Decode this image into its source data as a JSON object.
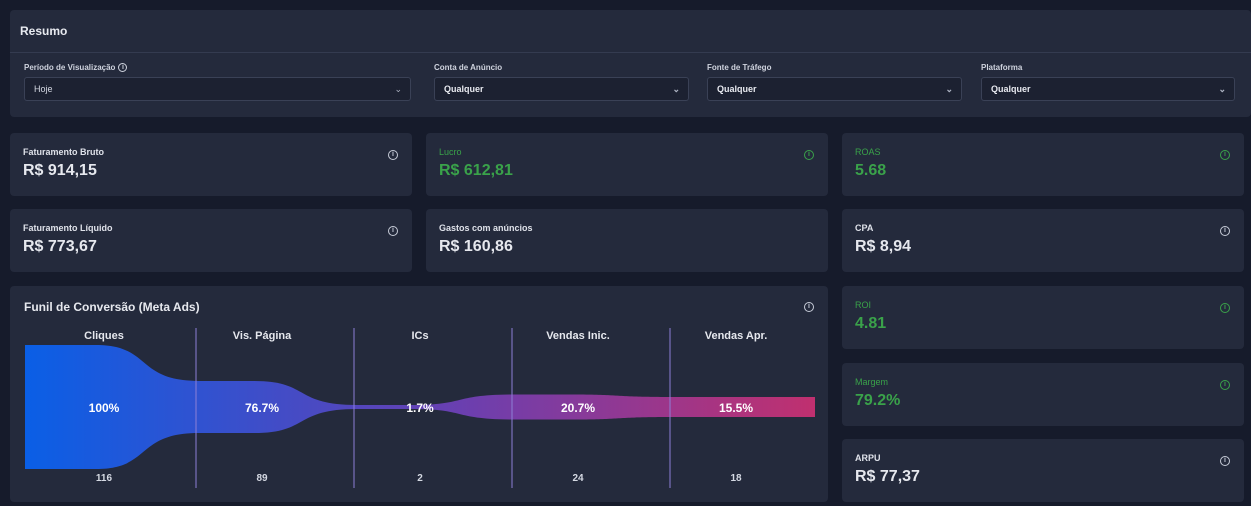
{
  "resumo": {
    "title": "Resumo",
    "filters": [
      {
        "label": "Período de Visualização",
        "value": "Hoje",
        "info": true
      },
      {
        "label": "Conta de Anúncio",
        "value": "Qualquer",
        "info": false
      },
      {
        "label": "Fonte de Tráfego",
        "value": "Qualquer",
        "info": false
      },
      {
        "label": "Plataforma",
        "value": "Qualquer",
        "info": false
      }
    ]
  },
  "kpis": {
    "faturamento_bruto": {
      "label": "Faturamento Bruto",
      "value": "R$ 914,15"
    },
    "lucro": {
      "label": "Lucro",
      "value": "R$ 612,81"
    },
    "roas": {
      "label": "ROAS",
      "value": "5.68"
    },
    "faturamento_liquido": {
      "label": "Faturamento Líquido",
      "value": "R$ 773,67"
    },
    "gastos": {
      "label": "Gastos com anúncios",
      "value": "R$ 160,86"
    },
    "cpa": {
      "label": "CPA",
      "value": "R$ 8,94"
    },
    "roi": {
      "label": "ROI",
      "value": "4.81"
    },
    "margem": {
      "label": "Margem",
      "value": "79.2%"
    },
    "arpu": {
      "label": "ARPU",
      "value": "R$ 77,37"
    }
  },
  "colors": {
    "positive": "#3aa24a",
    "panel": "#242a3c",
    "background": "#161b2b",
    "funnel_start": "#0a5fe6",
    "funnel_mid": "#6a3fb0",
    "funnel_end": "#c0306f"
  },
  "funnel": {
    "title": "Funil de Conversão (Meta Ads)",
    "stages": [
      {
        "name": "Cliques",
        "percent": "100%",
        "count": "116",
        "relative": 1.0
      },
      {
        "name": "Vis. Página",
        "percent": "76.7%",
        "count": "89",
        "relative": 0.767
      },
      {
        "name": "ICs",
        "percent": "1.7%",
        "count": "2",
        "relative": 0.017
      },
      {
        "name": "Vendas Inic.",
        "percent": "20.7%",
        "count": "24",
        "relative": 0.207
      },
      {
        "name": "Vendas Apr.",
        "percent": "15.5%",
        "count": "18",
        "relative": 0.155
      }
    ]
  }
}
